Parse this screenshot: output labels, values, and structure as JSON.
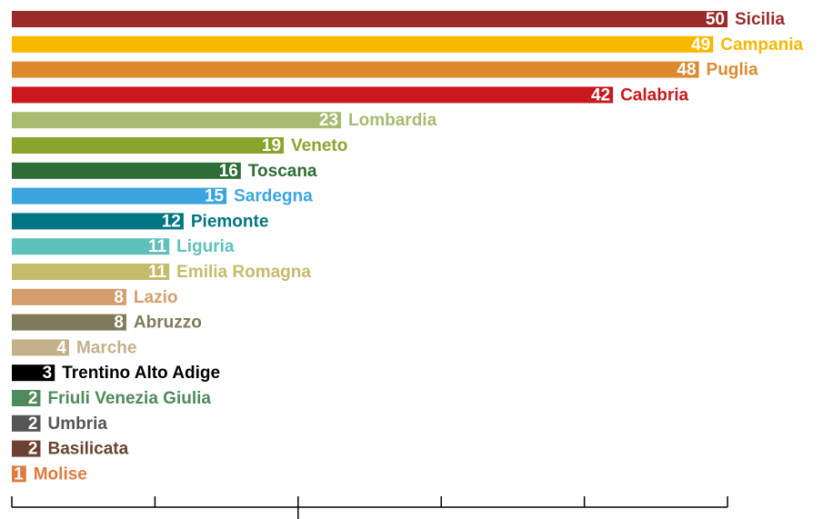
{
  "chart_data": {
    "type": "barh",
    "categories": [
      "Sicilia",
      "Campania",
      "Puglia",
      "Calabria",
      "Lombardia",
      "Veneto",
      "Toscana",
      "Sardegna",
      "Piemonte",
      "Liguria",
      "Emilia Romagna",
      "Lazio",
      "Abruzzo",
      "Marche",
      "Trentino Alto Adige",
      "Friuli Venezia Giulia",
      "Umbria",
      "Basilicata",
      "Molise"
    ],
    "values": [
      50,
      49,
      48,
      42,
      23,
      19,
      16,
      15,
      12,
      11,
      11,
      8,
      8,
      4,
      3,
      2,
      2,
      2,
      1
    ],
    "colors": [
      "#9b2a28",
      "#f9b800",
      "#dd8a2f",
      "#c9191e",
      "#a8bb6e",
      "#8aa52c",
      "#2e6d35",
      "#3aa5df",
      "#007584",
      "#5ec1bb",
      "#c6bb6a",
      "#d59d6c",
      "#7f7a5a",
      "#c4b08a",
      "#000000",
      "#4e8a5b",
      "#555555",
      "#6b4132",
      "#e07a3d"
    ],
    "xlim": [
      0,
      50
    ],
    "xticks": [
      0,
      10,
      20,
      30,
      40,
      50
    ]
  }
}
